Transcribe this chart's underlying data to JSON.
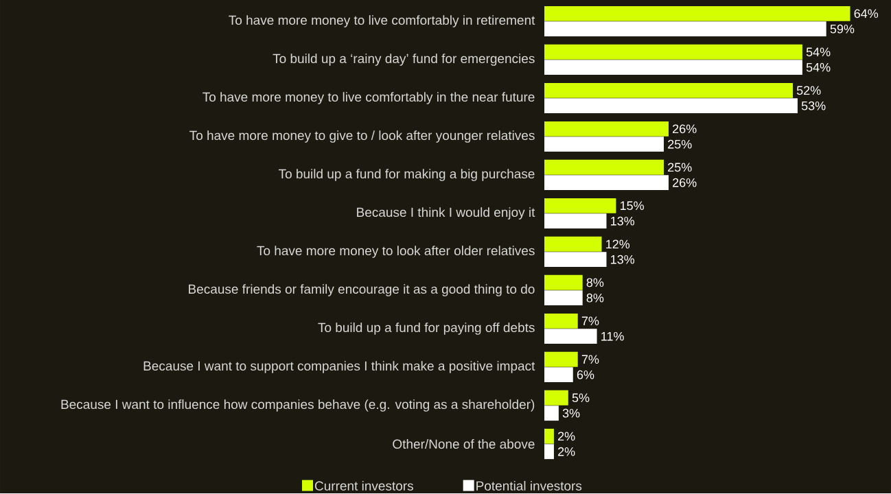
{
  "chart_data": {
    "type": "bar",
    "orientation": "horizontal",
    "categories": [
      "To have more money to live comfortably in retirement",
      "To build up a ‘rainy day’ fund for emergencies",
      "To have more money to live comfortably in the near future",
      "To have more money to give to / look after younger relatives",
      "To build up a fund for making a big purchase",
      "Because I think I would enjoy it",
      "To have more money to look after older relatives",
      "Because friends or family encourage it as a good thing to do",
      "To build up a fund for paying off debts",
      "Because I want to support companies I think make a positive impact",
      "Because I want to influence how companies behave (e.g. voting as a shareholder)",
      "Other/None of the above"
    ],
    "series": [
      {
        "name": "Current investors",
        "color": "#d4ff00",
        "values": [
          64,
          54,
          52,
          26,
          25,
          15,
          12,
          8,
          7,
          7,
          5,
          2
        ],
        "value_labels": [
          "64%",
          "54%",
          "52%",
          "26%",
          "25%",
          "15%",
          "12%",
          "8%",
          "7%",
          "7%",
          "5%",
          "2%"
        ]
      },
      {
        "name": "Potential investors",
        "color": "#ffffff",
        "values": [
          59,
          54,
          53,
          25,
          26,
          13,
          13,
          8,
          11,
          6,
          3,
          2
        ],
        "value_labels": [
          "59%",
          "54%",
          "53%",
          "25%",
          "26%",
          "13%",
          "13%",
          "8%",
          "11%",
          "6%",
          "3%",
          "2%"
        ]
      }
    ],
    "legend": "bottom"
  }
}
